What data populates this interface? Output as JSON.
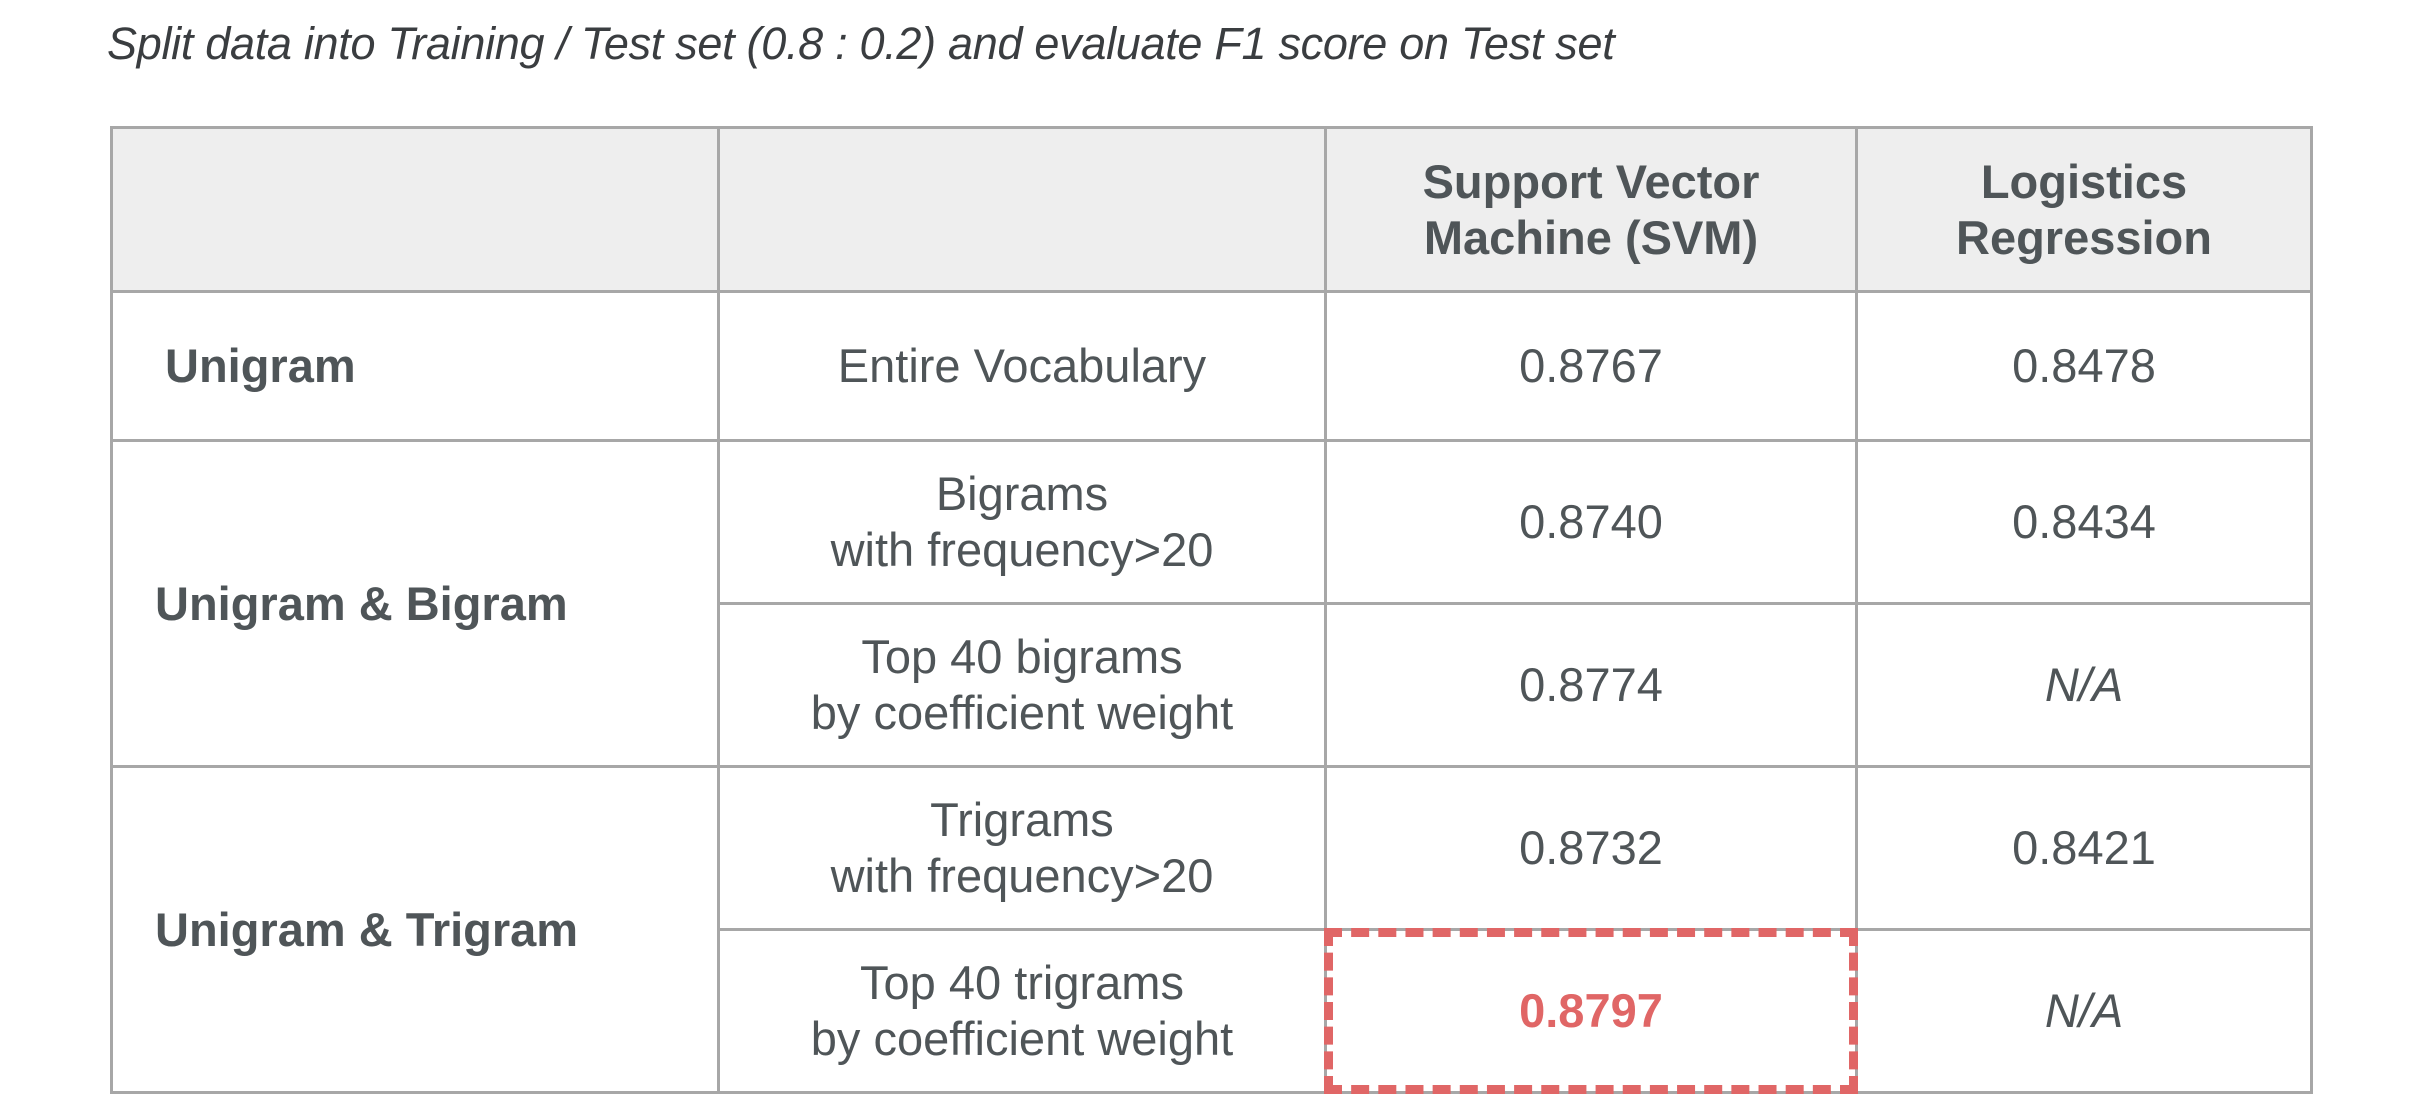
{
  "caption": "Split data into Training / Test set  (0.8 : 0.2) and evaluate F1 score on Test set",
  "table": {
    "headers": [
      "",
      "",
      "Support Vector Machine (SVM)",
      "Logistics Regression"
    ],
    "header_lines": {
      "svm": [
        "Support Vector",
        "Machine (SVM)"
      ],
      "lr": [
        "Logistics",
        "Regression"
      ]
    },
    "rows": [
      {
        "feature": "Unigram",
        "selection_lines": [
          "Entire Vocabulary"
        ],
        "svm": "0.8767",
        "lr": "0.8478"
      },
      {
        "feature": "Unigram & Bigram",
        "selection_lines": [
          "Bigrams",
          "with frequency>20"
        ],
        "svm": "0.8740",
        "lr": "0.8434"
      },
      {
        "feature": "",
        "selection_lines": [
          "Top 40 bigrams",
          "by coefficient weight"
        ],
        "svm": "0.8774",
        "lr": "N/A"
      },
      {
        "feature": "Unigram & Trigram",
        "selection_lines": [
          "Trigrams",
          "with frequency>20"
        ],
        "svm": "0.8732",
        "lr": "0.8421"
      },
      {
        "feature": "",
        "selection_lines": [
          "Top 40 trigrams",
          "by coefficient weight"
        ],
        "svm": "0.8797",
        "lr": "N/A"
      }
    ],
    "highlight": {
      "row": 4,
      "column": "svm",
      "color": "#e06666",
      "style": "dashed"
    }
  },
  "colors": {
    "header_bg": "#eeeeee",
    "border": "#a7a7a7",
    "text": "#4f5558",
    "highlight": "#e06666"
  }
}
